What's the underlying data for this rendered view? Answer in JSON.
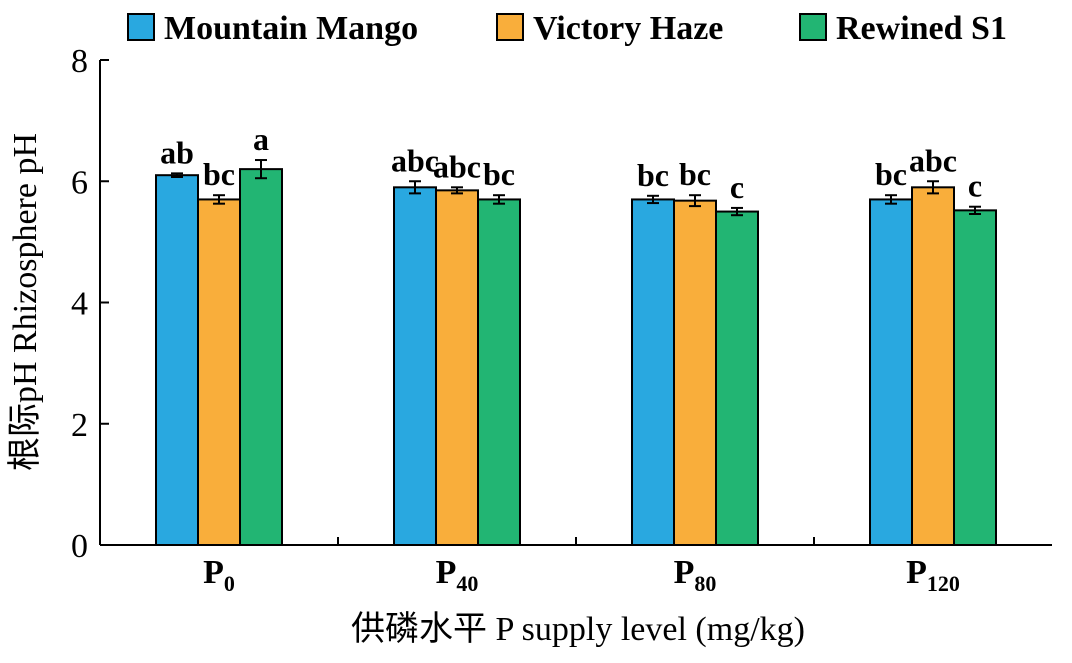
{
  "chart_data": {
    "type": "bar",
    "categories": [
      "P",
      "P",
      "P",
      "P"
    ],
    "category_subscripts": [
      "0",
      "40",
      "80",
      "120"
    ],
    "series": [
      {
        "name": "Mountain Mango",
        "color": "#29a8e0",
        "values": [
          6.1,
          5.9,
          5.7,
          5.7
        ],
        "errors": [
          0.03,
          0.1,
          0.06,
          0.07
        ],
        "letters": [
          "ab",
          "abc",
          "bc",
          "bc"
        ]
      },
      {
        "name": "Victory Haze",
        "color": "#f9ae3b",
        "values": [
          5.7,
          5.85,
          5.68,
          5.9
        ],
        "errors": [
          0.07,
          0.05,
          0.09,
          0.1
        ],
        "letters": [
          "bc",
          "abc",
          "bc",
          "abc"
        ]
      },
      {
        "name": "Rewined S1",
        "color": "#22b573",
        "values": [
          6.2,
          5.7,
          5.5,
          5.52
        ],
        "errors": [
          0.15,
          0.07,
          0.06,
          0.06
        ],
        "letters": [
          "a",
          "bc",
          "c",
          "c"
        ]
      }
    ],
    "xlabel": "供磷水平 P supply level (mg/kg)",
    "ylabel": "根际pH Rhizosphere pH",
    "ylim": [
      0,
      8
    ],
    "yticks": [
      0,
      2,
      4,
      6,
      8
    ],
    "legend_position": "top",
    "grid": false
  }
}
